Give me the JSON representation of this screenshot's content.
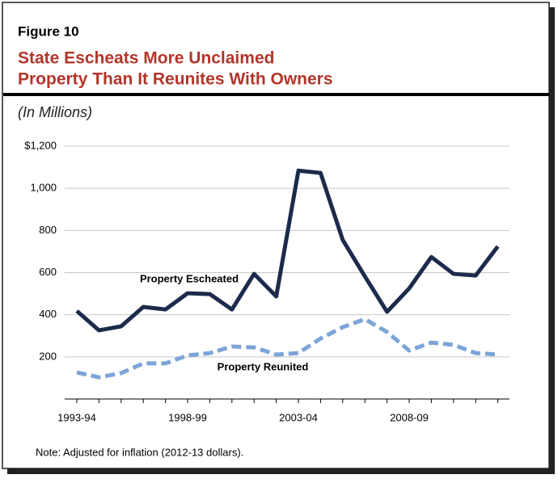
{
  "figure_label": "Figure 10",
  "chart_data": {
    "type": "line",
    "title": [
      "State Escheats More Unclaimed",
      "Property Than It Reunites With Owners"
    ],
    "subtitle": "(In Millions)",
    "note": "Note: Adjusted for inflation (2012-13 dollars).",
    "categories": [
      "1993-94",
      null,
      null,
      null,
      null,
      "1998-99",
      null,
      null,
      null,
      null,
      "2003-04",
      null,
      null,
      null,
      null,
      "2008-09",
      null,
      null,
      null,
      null
    ],
    "series": [
      {
        "name": "Property Escheated",
        "color": "#1c2b4c",
        "dashed": false,
        "values": [
          418,
          326,
          345,
          437,
          425,
          502,
          498,
          425,
          594,
          487,
          1084,
          1073,
          755,
          582,
          414,
          525,
          674,
          594,
          586,
          724
        ]
      },
      {
        "name": "Property Reunited",
        "color": "#7ca4d8",
        "dashed": true,
        "values": [
          126,
          103,
          123,
          169,
          169,
          207,
          218,
          249,
          245,
          211,
          218,
          287,
          341,
          379,
          318,
          230,
          268,
          257,
          218,
          211
        ]
      }
    ],
    "ylim": [
      0,
      1200
    ],
    "yticks": [
      200,
      400,
      600,
      800,
      {
        "value": 1000,
        "label": "1,000"
      },
      {
        "value": 1200,
        "label": "$1,200"
      }
    ],
    "grid": true
  }
}
